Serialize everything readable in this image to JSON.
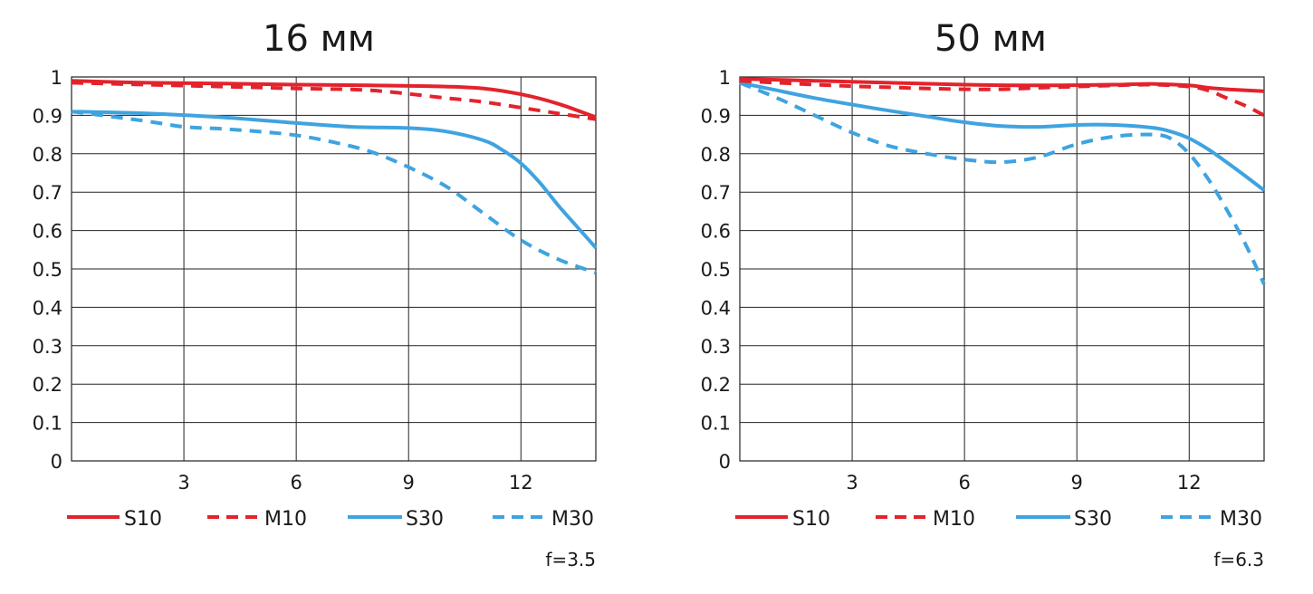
{
  "colors": {
    "red": "#e3232c",
    "blue": "#3fa3e0",
    "grid": "#222222"
  },
  "chart_data": [
    {
      "type": "line",
      "title": "16 мм",
      "xlabel": "",
      "ylabel": "",
      "xlim": [
        0,
        14
      ],
      "ylim": [
        0,
        1
      ],
      "x_ticks": [
        3,
        6,
        9,
        12
      ],
      "x_tick_labels": [
        "3",
        "6",
        "9",
        "12"
      ],
      "y_ticks": [
        0,
        0.1,
        0.2,
        0.3,
        0.4,
        0.5,
        0.6,
        0.7,
        0.8,
        0.9,
        1
      ],
      "y_tick_labels": [
        "0",
        "0.1",
        "0.2",
        "0.3",
        "0.4",
        "0.5",
        "0.6",
        "0.7",
        "0.8",
        "0.9",
        "1"
      ],
      "grid": true,
      "legend_position": "bottom",
      "aperture": "f=3.5",
      "series": [
        {
          "name": "S10",
          "color": "#e3232c",
          "style": "solid",
          "x": [
            0,
            2,
            4,
            6,
            8,
            10,
            11,
            12,
            13,
            14
          ],
          "y": [
            0.99,
            0.985,
            0.983,
            0.98,
            0.978,
            0.975,
            0.97,
            0.955,
            0.93,
            0.895
          ]
        },
        {
          "name": "M10",
          "color": "#e3232c",
          "style": "dashed",
          "x": [
            0,
            2,
            4,
            6,
            8,
            10,
            11,
            12,
            13,
            14
          ],
          "y": [
            0.985,
            0.98,
            0.975,
            0.97,
            0.965,
            0.945,
            0.935,
            0.92,
            0.905,
            0.89
          ]
        },
        {
          "name": "S30",
          "color": "#3fa3e0",
          "style": "solid",
          "x": [
            0,
            2,
            4,
            6,
            7.5,
            9,
            10,
            11,
            11.5,
            12,
            12.5,
            13,
            13.5,
            14
          ],
          "y": [
            0.91,
            0.905,
            0.895,
            0.88,
            0.87,
            0.867,
            0.858,
            0.835,
            0.81,
            0.775,
            0.725,
            0.665,
            0.61,
            0.555
          ]
        },
        {
          "name": "M30",
          "color": "#3fa3e0",
          "style": "dashed",
          "x": [
            0,
            2,
            3,
            4,
            5,
            6,
            7,
            8,
            9,
            10,
            11,
            12,
            13,
            14
          ],
          "y": [
            0.91,
            0.885,
            0.87,
            0.865,
            0.858,
            0.848,
            0.83,
            0.805,
            0.765,
            0.715,
            0.645,
            0.575,
            0.525,
            0.49
          ]
        }
      ]
    },
    {
      "type": "line",
      "title": "50 мм",
      "xlabel": "",
      "ylabel": "",
      "xlim": [
        0,
        14
      ],
      "ylim": [
        0,
        1
      ],
      "x_ticks": [
        3,
        6,
        9,
        12
      ],
      "x_tick_labels": [
        "3",
        "6",
        "9",
        "12"
      ],
      "y_ticks": [
        0,
        0.1,
        0.2,
        0.3,
        0.4,
        0.5,
        0.6,
        0.7,
        0.8,
        0.9,
        1
      ],
      "y_tick_labels": [
        "0",
        "0.1",
        "0.2",
        "0.3",
        "0.4",
        "0.5",
        "0.6",
        "0.7",
        "0.8",
        "0.9",
        "1"
      ],
      "grid": true,
      "legend_position": "bottom",
      "aperture": "f=6.3",
      "series": [
        {
          "name": "S10",
          "color": "#e3232c",
          "style": "solid",
          "x": [
            0,
            2,
            4,
            6,
            8,
            10,
            11,
            12,
            12.5,
            13,
            14
          ],
          "y": [
            0.995,
            0.99,
            0.985,
            0.98,
            0.978,
            0.98,
            0.982,
            0.978,
            0.972,
            0.968,
            0.963
          ]
        },
        {
          "name": "M10",
          "color": "#e3232c",
          "style": "dashed",
          "x": [
            0,
            1,
            2,
            3,
            4,
            5,
            6,
            7,
            8,
            9,
            10,
            11,
            12,
            12.5,
            13,
            13.5,
            14
          ],
          "y": [
            0.99,
            0.985,
            0.98,
            0.976,
            0.973,
            0.97,
            0.968,
            0.968,
            0.972,
            0.975,
            0.978,
            0.98,
            0.975,
            0.965,
            0.945,
            0.925,
            0.9
          ]
        },
        {
          "name": "S30",
          "color": "#3fa3e0",
          "style": "solid",
          "x": [
            0,
            1,
            2,
            3,
            4,
            5,
            6,
            7,
            8,
            9,
            10,
            11,
            11.5,
            12,
            12.5,
            13,
            13.5,
            14
          ],
          "y": [
            0.985,
            0.965,
            0.945,
            0.928,
            0.912,
            0.897,
            0.882,
            0.872,
            0.87,
            0.875,
            0.875,
            0.868,
            0.858,
            0.84,
            0.812,
            0.778,
            0.742,
            0.705
          ]
        },
        {
          "name": "M30",
          "color": "#3fa3e0",
          "style": "dashed",
          "x": [
            0,
            1,
            2,
            3,
            4,
            5,
            6,
            7,
            8,
            9,
            10,
            11,
            11.5,
            12,
            12.5,
            13,
            13.5,
            14
          ],
          "y": [
            0.985,
            0.945,
            0.9,
            0.855,
            0.82,
            0.8,
            0.785,
            0.778,
            0.792,
            0.825,
            0.845,
            0.85,
            0.84,
            0.8,
            0.735,
            0.655,
            0.565,
            0.46
          ]
        }
      ]
    }
  ]
}
